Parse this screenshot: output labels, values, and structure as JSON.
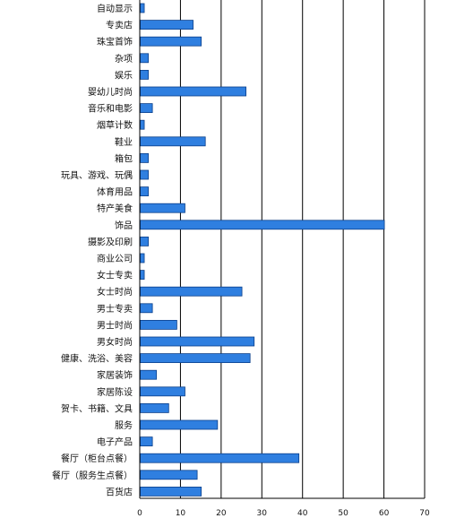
{
  "chart_data": {
    "type": "bar",
    "orientation": "horizontal",
    "title": "",
    "xlabel": "",
    "ylabel": "",
    "categories": [
      "自动显示",
      "专卖店",
      "珠宝首饰",
      "杂项",
      "娱乐",
      "婴幼儿时尚",
      "音乐和电影",
      "烟草计数",
      "鞋业",
      "箱包",
      "玩具、游戏、玩偶",
      "体育用品",
      "特产美食",
      "饰品",
      "摄影及印刷",
      "商业公司",
      "女士专卖",
      "女士时尚",
      "男士专卖",
      "男士时尚",
      "男女时尚",
      "健康、洗浴、美容",
      "家居装饰",
      "家居陈设",
      "贺卡、书籍、文具",
      "服务",
      "电子产品",
      "餐厅（柜台点餐）",
      "餐厅（服务生点餐）",
      "百货店"
    ],
    "values": [
      1,
      13,
      15,
      2,
      2,
      26,
      3,
      1,
      16,
      2,
      2,
      2,
      11,
      60,
      2,
      1,
      1,
      25,
      3,
      9,
      28,
      27,
      4,
      11,
      7,
      19,
      3,
      39,
      14,
      15
    ],
    "xlim": [
      0,
      70
    ],
    "xticks": [
      "0",
      "10",
      "20",
      "30",
      "40",
      "50",
      "60",
      "70"
    ],
    "grid": "vertical",
    "legend": "none",
    "bar_color": "#2f7fe0",
    "bar_edge_color": "#0b3f8a"
  }
}
